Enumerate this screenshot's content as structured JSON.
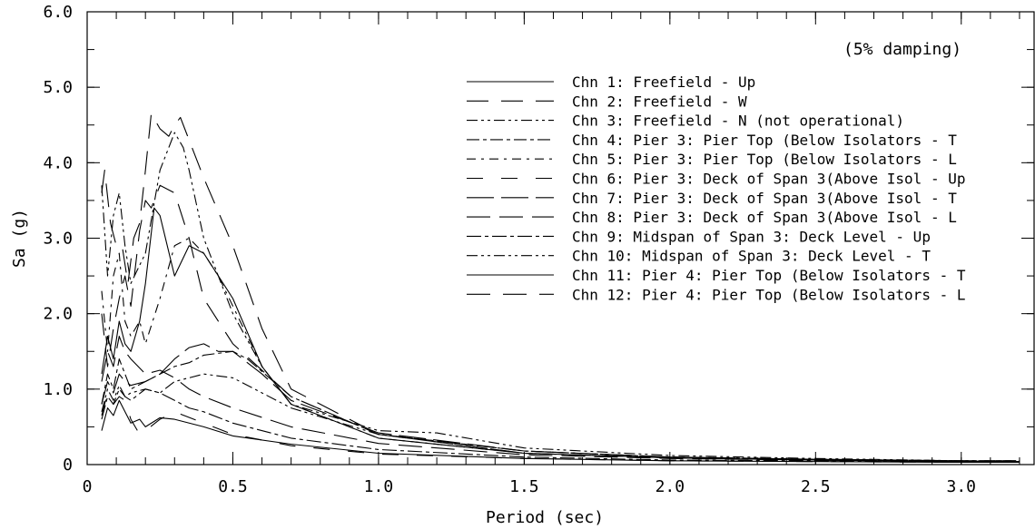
{
  "chart_data": {
    "type": "line",
    "title": "",
    "xlabel": "Period (sec)",
    "ylabel": "Sa (g)",
    "xlim": [
      0,
      3.25
    ],
    "ylim": [
      0,
      6.0
    ],
    "x_ticks": [
      0,
      0.5,
      1.0,
      1.5,
      2.0,
      2.5,
      3.0
    ],
    "x_tick_labels": [
      "0",
      "0.5",
      "1.0",
      "1.5",
      "2.0",
      "2.5",
      "3.0"
    ],
    "y_ticks": [
      0,
      1.0,
      2.0,
      3.0,
      4.0,
      5.0,
      6.0
    ],
    "y_tick_labels": [
      "0",
      "1.0",
      "2.0",
      "3.0",
      "4.0",
      "5.0",
      "6.0"
    ],
    "grid": false,
    "legend_position": "upper-right",
    "annotation": "(5% damping)",
    "series": [
      {
        "name": "Chn 1: Freefield - Up",
        "dash": "",
        "x": [
          0.05,
          0.07,
          0.09,
          0.11,
          0.13,
          0.15,
          0.18,
          0.2,
          0.25,
          0.3,
          0.4,
          0.5,
          0.7,
          1.0,
          1.5,
          2.0,
          2.5,
          3.0,
          3.2
        ],
        "y": [
          0.45,
          0.75,
          0.65,
          0.85,
          0.7,
          0.55,
          0.6,
          0.5,
          0.62,
          0.6,
          0.5,
          0.38,
          0.27,
          0.15,
          0.08,
          0.05,
          0.04,
          0.03,
          0.03
        ]
      },
      {
        "name": "Chn 2: Freefield - W",
        "dash": "24 14",
        "x": [
          0.05,
          0.07,
          0.09,
          0.11,
          0.13,
          0.15,
          0.18,
          0.2,
          0.22,
          0.25,
          0.3,
          0.35,
          0.4,
          0.5,
          0.7,
          1.0,
          1.5,
          2.0,
          2.5,
          3.0,
          3.2
        ],
        "y": [
          2.0,
          1.3,
          1.8,
          2.2,
          2.5,
          2.1,
          3.1,
          3.5,
          3.4,
          3.7,
          3.6,
          3.0,
          2.2,
          1.6,
          0.9,
          0.4,
          0.15,
          0.09,
          0.06,
          0.04,
          0.04
        ]
      },
      {
        "name": "Chn 3: Freefield - N (not operational)",
        "dash": "12 4 3 4 3 4",
        "x": [
          0.05,
          0.07,
          0.09,
          0.11,
          0.13,
          0.15,
          0.2,
          0.25,
          0.3,
          0.35,
          0.4,
          0.5,
          0.7,
          1.0,
          1.5,
          2.0,
          2.5,
          3.0,
          3.2
        ],
        "y": [
          0.7,
          1.0,
          0.85,
          1.05,
          0.9,
          0.95,
          1.0,
          0.95,
          1.1,
          1.15,
          1.2,
          1.15,
          0.75,
          0.4,
          0.18,
          0.1,
          0.07,
          0.05,
          0.04
        ]
      },
      {
        "name": "Chn 4: Pier 3: Pier Top (Below Isolators - T",
        "dash": "14 4 4 4",
        "x": [
          0.05,
          0.07,
          0.09,
          0.11,
          0.13,
          0.15,
          0.2,
          0.25,
          0.3,
          0.35,
          0.4,
          0.5,
          0.55,
          0.7,
          1.0,
          1.5,
          2.0,
          2.5,
          3.0,
          3.2
        ],
        "y": [
          0.8,
          1.2,
          1.0,
          1.4,
          1.2,
          1.0,
          1.1,
          1.2,
          1.3,
          1.35,
          1.45,
          1.5,
          1.4,
          0.9,
          0.4,
          0.18,
          0.1,
          0.07,
          0.05,
          0.05
        ]
      },
      {
        "name": "Chn 5: Pier 3: Pier Top (Below Isolators - L",
        "dash": "10 6 3 6",
        "x": [
          0.05,
          0.07,
          0.09,
          0.11,
          0.13,
          0.15,
          0.18,
          0.2,
          0.25,
          0.3,
          0.35,
          0.4,
          0.45,
          0.5,
          0.6,
          0.7,
          1.0,
          1.5,
          2.0,
          2.5,
          3.0,
          3.2
        ],
        "y": [
          2.3,
          1.5,
          2.5,
          2.8,
          1.9,
          1.7,
          1.9,
          1.6,
          2.2,
          2.9,
          3.0,
          2.8,
          2.5,
          2.1,
          1.3,
          0.8,
          0.35,
          0.15,
          0.09,
          0.06,
          0.04,
          0.04
        ]
      },
      {
        "name": "Chn 6: Pier 3: Deck of Span 3(Above Isol - Up",
        "dash": "18 20",
        "x": [
          0.05,
          0.07,
          0.09,
          0.11,
          0.13,
          0.15,
          0.18,
          0.2,
          0.25,
          0.3,
          0.4,
          0.5,
          0.7,
          1.0,
          1.5,
          2.0,
          2.5,
          3.0,
          3.2
        ],
        "y": [
          0.65,
          0.95,
          0.8,
          0.9,
          0.85,
          0.6,
          0.4,
          0.45,
          0.6,
          0.7,
          0.55,
          0.4,
          0.25,
          0.14,
          0.08,
          0.05,
          0.04,
          0.03,
          0.03
        ]
      },
      {
        "name": "Chn 7: Pier 3: Deck of Span 3(Above Isol - T",
        "dash": "30 8",
        "x": [
          0.05,
          0.07,
          0.09,
          0.11,
          0.13,
          0.15,
          0.2,
          0.25,
          0.3,
          0.35,
          0.4,
          0.45,
          0.5,
          0.6,
          0.7,
          1.0,
          1.5,
          2.0,
          2.5,
          3.0,
          3.2
        ],
        "y": [
          0.8,
          1.1,
          0.95,
          1.2,
          1.1,
          1.05,
          1.1,
          1.2,
          1.4,
          1.55,
          1.6,
          1.5,
          1.5,
          1.2,
          0.85,
          0.42,
          0.18,
          0.1,
          0.07,
          0.05,
          0.05
        ]
      },
      {
        "name": "Chn 8: Pier 3: Deck of Span 3(Above Isol - L",
        "dash": "26 10",
        "x": [
          0.05,
          0.07,
          0.09,
          0.11,
          0.13,
          0.15,
          0.2,
          0.25,
          0.3,
          0.35,
          0.4,
          0.5,
          0.7,
          1.0,
          1.5,
          2.0,
          2.5,
          3.0,
          3.2
        ],
        "y": [
          1.1,
          1.5,
          1.3,
          1.7,
          1.5,
          1.4,
          1.2,
          1.25,
          1.15,
          1.0,
          0.9,
          0.75,
          0.5,
          0.28,
          0.13,
          0.08,
          0.06,
          0.04,
          0.04
        ]
      },
      {
        "name": "Chn 9: Midspan of Span 3: Deck Level - Up",
        "dash": "16 4 4 4",
        "x": [
          0.05,
          0.07,
          0.09,
          0.11,
          0.13,
          0.15,
          0.2,
          0.25,
          0.3,
          0.35,
          0.4,
          0.5,
          0.7,
          1.0,
          1.5,
          2.0,
          2.5,
          3.0,
          3.2
        ],
        "y": [
          0.6,
          0.9,
          0.8,
          1.0,
          0.9,
          0.85,
          1.0,
          0.95,
          0.85,
          0.75,
          0.7,
          0.55,
          0.35,
          0.2,
          0.1,
          0.06,
          0.05,
          0.03,
          0.03
        ]
      },
      {
        "name": "Chn 10: Midspan of Span 3: Deck Level - T",
        "dash": "12 4 3 4 3 4",
        "x": [
          0.05,
          0.07,
          0.09,
          0.11,
          0.13,
          0.15,
          0.2,
          0.25,
          0.3,
          0.33,
          0.35,
          0.4,
          0.5,
          0.6,
          0.7,
          1.0,
          1.2,
          1.5,
          2.0,
          2.5,
          3.0,
          3.2
        ],
        "y": [
          3.7,
          2.5,
          3.3,
          3.6,
          2.9,
          2.4,
          2.8,
          3.9,
          4.4,
          4.2,
          3.9,
          3.0,
          2.0,
          1.3,
          0.8,
          0.45,
          0.42,
          0.22,
          0.12,
          0.08,
          0.05,
          0.05
        ]
      },
      {
        "name": "Chn 11: Pier 4: Pier Top (Below Isolators - T",
        "dash": "",
        "x": [
          0.05,
          0.07,
          0.09,
          0.11,
          0.13,
          0.15,
          0.18,
          0.2,
          0.23,
          0.25,
          0.3,
          0.35,
          0.4,
          0.5,
          0.6,
          0.7,
          1.0,
          1.5,
          2.0,
          2.5,
          3.0,
          3.2
        ],
        "y": [
          1.2,
          1.7,
          1.4,
          1.9,
          1.6,
          1.5,
          1.9,
          2.4,
          3.4,
          3.3,
          2.5,
          2.9,
          2.8,
          2.2,
          1.3,
          0.8,
          0.35,
          0.15,
          0.09,
          0.06,
          0.04,
          0.04
        ]
      },
      {
        "name": "Chn 12: Pier 4: Pier Top (Below Isolators - L",
        "dash": "26 14",
        "x": [
          0.05,
          0.06,
          0.08,
          0.1,
          0.12,
          0.14,
          0.16,
          0.18,
          0.2,
          0.22,
          0.25,
          0.28,
          0.3,
          0.32,
          0.35,
          0.4,
          0.5,
          0.6,
          0.7,
          1.0,
          1.5,
          2.0,
          2.5,
          3.0,
          3.2
        ],
        "y": [
          3.6,
          3.9,
          3.2,
          2.9,
          2.9,
          2.4,
          3.0,
          3.2,
          3.9,
          4.65,
          4.45,
          4.35,
          4.5,
          4.6,
          4.3,
          3.8,
          2.9,
          1.8,
          1.0,
          0.4,
          0.15,
          0.09,
          0.06,
          0.04,
          0.04
        ]
      }
    ]
  }
}
